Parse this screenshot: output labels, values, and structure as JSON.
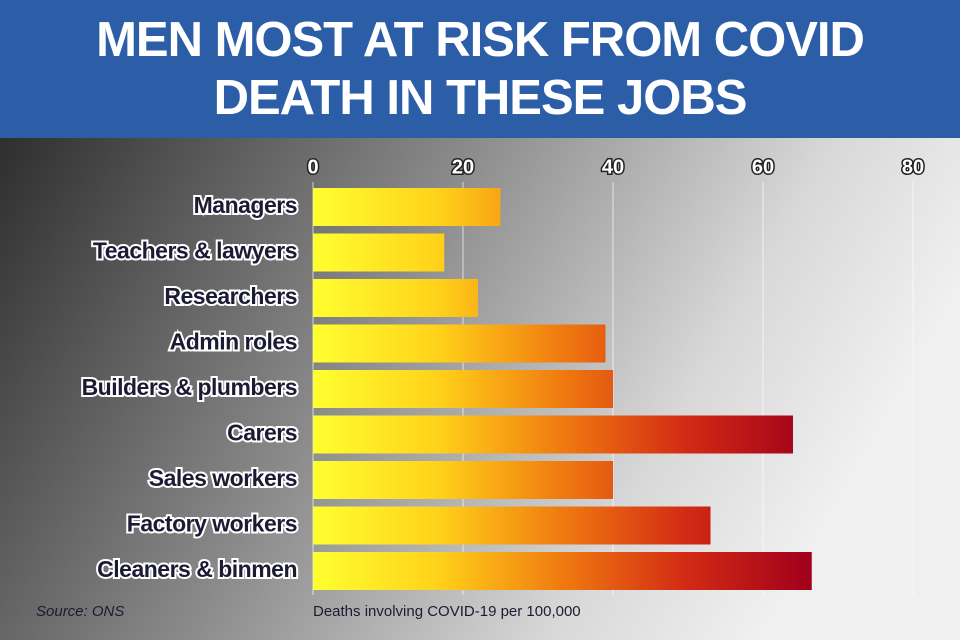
{
  "chart_data": {
    "type": "bar",
    "orientation": "horizontal",
    "title": "MEN MOST AT RISK FROM COVID DEATH IN THESE JOBS",
    "x_label": "Deaths involving COVID-19 per 100,000",
    "source": "Source: ONS",
    "categories": [
      "Managers",
      "Teachers & lawyers",
      "Researchers",
      "Admin roles",
      "Builders & plumbers",
      "Carers",
      "Sales workers",
      "Factory workers",
      "Cleaners & binmen"
    ],
    "values": [
      25,
      17.5,
      22,
      39,
      40,
      64,
      40,
      53,
      66.5
    ],
    "color_scale": [
      "#ffff30",
      "#ffd21a",
      "#f07a10",
      "#d22a14",
      "#a0001c"
    ],
    "xlim": [
      0,
      80
    ],
    "xticks": [
      0,
      20,
      40,
      60,
      80
    ],
    "grid": true
  }
}
